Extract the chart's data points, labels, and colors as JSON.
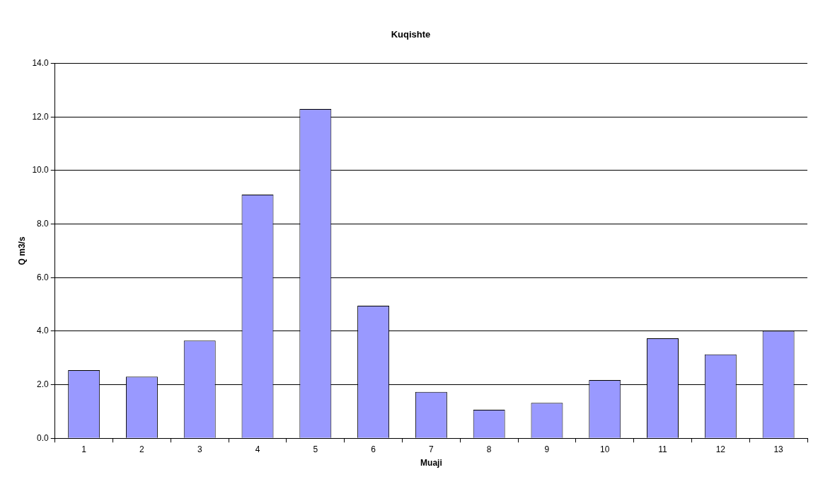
{
  "chart_data": {
    "type": "bar",
    "title": "Kuqishte",
    "xlabel": "Muaji",
    "ylabel": "Q m3/s",
    "categories": [
      "1",
      "2",
      "3",
      "4",
      "5",
      "6",
      "7",
      "8",
      "9",
      "10",
      "11",
      "12",
      "13"
    ],
    "values": [
      2.54,
      2.3,
      3.65,
      9.1,
      12.3,
      4.95,
      1.73,
      1.06,
      1.32,
      2.17,
      3.73,
      3.13,
      4.01
    ],
    "color": "#9999ff",
    "ylim": [
      0,
      14
    ],
    "yticks": [
      {
        "value": 0,
        "label": "0.0"
      },
      {
        "value": 2,
        "label": "2.0"
      },
      {
        "value": 4,
        "label": "4.0"
      },
      {
        "value": 6,
        "label": "6.0"
      },
      {
        "value": 8,
        "label": "8.0"
      },
      {
        "value": 10,
        "label": "10.0"
      },
      {
        "value": 12,
        "label": "12.0"
      },
      {
        "value": 14,
        "label": "14.0"
      }
    ],
    "grid": "y",
    "legend": false
  }
}
